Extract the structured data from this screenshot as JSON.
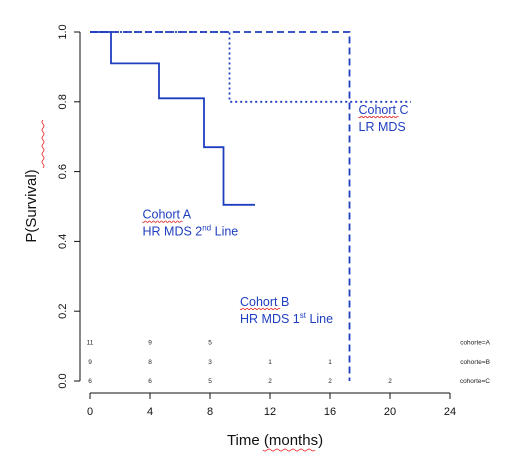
{
  "chart_data": {
    "type": "line",
    "title": "",
    "xlabel": "Time (months)",
    "ylabel": "P(Survival)",
    "xlim": [
      0,
      24
    ],
    "ylim": [
      0,
      1
    ],
    "x_ticks": [
      "0",
      "4",
      "8",
      "12",
      "16",
      "20",
      "24"
    ],
    "y_ticks": [
      "0.0",
      "0.2",
      "0.4",
      "0.6",
      "0.8",
      "1.0"
    ],
    "accent_color": "#1f3fbf",
    "series": [
      {
        "name": "Cohort A",
        "style": "solid",
        "x": [
          0,
          1.4,
          1.4,
          4.6,
          4.6,
          7.6,
          7.6,
          8.9,
          8.9,
          11.0
        ],
        "y": [
          1.0,
          1.0,
          0.91,
          0.91,
          0.81,
          0.81,
          0.67,
          0.67,
          0.505,
          0.505
        ]
      },
      {
        "name": "Cohort B",
        "style": "dashed",
        "x": [
          0,
          17.3,
          17.3
        ],
        "y": [
          1.0,
          1.0,
          0.0
        ]
      },
      {
        "name": "Cohort C",
        "style": "dotted",
        "x": [
          0,
          9.3,
          9.3,
          21.4
        ],
        "y": [
          1.0,
          1.0,
          0.8,
          0.8
        ]
      }
    ],
    "annotations": [
      {
        "key": "a",
        "line1": "Cohort A",
        "line2_main": "HR MDS 2",
        "line2_sup": "nd",
        "line2_tail": " Line",
        "x": 3.5,
        "y": 0.465
      },
      {
        "key": "b",
        "line1": "Cohort B",
        "line2_main": "HR MDS 1",
        "line2_sup": "st",
        "line2_tail": " Line",
        "x": 10.0,
        "y": 0.215
      },
      {
        "key": "c",
        "line1": "Cohort C",
        "line2": "LR MDS",
        "x": 17.9,
        "y": 0.765
      }
    ],
    "risk_table": {
      "rows": [
        {
          "label": "cohorte=A",
          "y": 0.11,
          "values": [
            {
              "x": 0,
              "v": "11"
            },
            {
              "x": 4,
              "v": "9"
            },
            {
              "x": 8,
              "v": "5"
            }
          ]
        },
        {
          "label": "cohorte=B",
          "y": 0.055,
          "values": [
            {
              "x": 0,
              "v": "9"
            },
            {
              "x": 4,
              "v": "8"
            },
            {
              "x": 8,
              "v": "3"
            },
            {
              "x": 12,
              "v": "1"
            },
            {
              "x": 16,
              "v": "1"
            }
          ]
        },
        {
          "label": "cohorte=C",
          "y": 0.0,
          "values": [
            {
              "x": 0,
              "v": "6"
            },
            {
              "x": 4,
              "v": "6"
            },
            {
              "x": 8,
              "v": "5"
            },
            {
              "x": 12,
              "v": "2"
            },
            {
              "x": 16,
              "v": "2"
            },
            {
              "x": 20,
              "v": "2"
            }
          ]
        }
      ]
    }
  }
}
